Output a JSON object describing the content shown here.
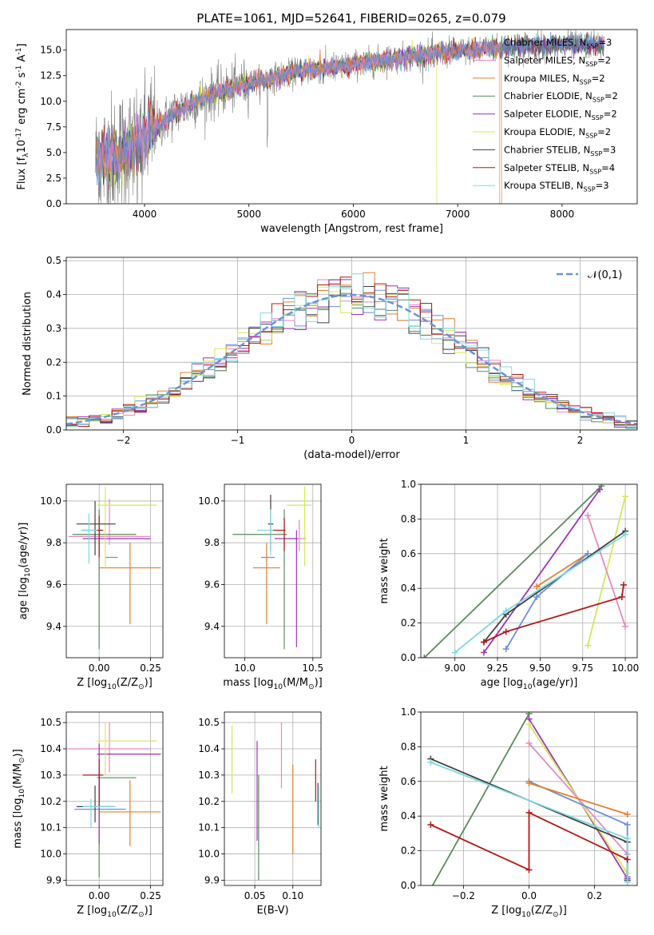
{
  "figure_title": "PLATE=1061, MJD=52641, FIBERID=0265, z=0.079",
  "colors": {
    "data": "#808080",
    "chabrier_miles": "#6b8fdd",
    "salpeter_miles": "#e58ac2",
    "kroupa_miles": "#e6802b",
    "chabrier_elodie": "#5c8a5e",
    "salpeter_elodie": "#9b35b5",
    "kroupa_elodie": "#d4e85a",
    "chabrier_stelib": "#404040",
    "salpeter_stelib": "#b01a1a",
    "kroupa_stelib": "#7fd9e0",
    "normal": "#6a94d4"
  },
  "legend_models": [
    "Chabrier MILES, N$_{SSP}$=3",
    "Salpeter MILES, N$_{SSP}$=2",
    "Kroupa MILES, N$_{SSP}$=2",
    "Chabrier ELODIE, N$_{SSP}$=2",
    "Salpeter ELODIE, N$_{SSP}$=2",
    "Kroupa ELODIE, N$_{SSP}$=2",
    "Chabrier STELIB, N$_{SSP}$=3",
    "Salpeter STELIB, N$_{SSP}$=4",
    "Kroupa STELIB, N$_{SSP}$=3"
  ],
  "chart_data": [
    {
      "id": "spectrum",
      "type": "line",
      "xlabel": "wavelength [Angstrom, rest frame]",
      "ylabel": "Flux [f$_\\lambda$10$^{-17}$ erg cm$^{-2}$ s$^{-1}$ A$^{-1}$]",
      "xlim": [
        3250,
        8720
      ],
      "ylim": [
        0,
        17
      ],
      "xticks": [
        4000,
        5000,
        6000,
        7000,
        8000
      ],
      "yticks": [
        0.0,
        2.5,
        5.0,
        7.5,
        10.0,
        12.5,
        15.0
      ],
      "grid": false,
      "legend": "upper right",
      "x_range": [
        3530,
        8400
      ],
      "continuum": [
        [
          3530,
          4.0
        ],
        [
          3800,
          5.0
        ],
        [
          4000,
          6.5
        ],
        [
          4300,
          9.0
        ],
        [
          4600,
          10.5
        ],
        [
          5000,
          11.8
        ],
        [
          5500,
          12.9
        ],
        [
          6000,
          13.6
        ],
        [
          6500,
          14.3
        ],
        [
          7000,
          14.9
        ],
        [
          7500,
          15.3
        ],
        [
          8000,
          15.5
        ],
        [
          8400,
          15.5
        ]
      ]
    },
    {
      "id": "residuals",
      "type": "histogram",
      "xlabel": "(data-model)/error",
      "ylabel": "Normed distribution",
      "xlim": [
        -2.5,
        2.5
      ],
      "ylim": [
        0,
        0.51
      ],
      "xticks": [
        -2,
        -1,
        0,
        1,
        2
      ],
      "yticks": [
        0.0,
        0.1,
        0.2,
        0.3,
        0.4,
        0.5
      ],
      "grid": true,
      "legend": "upper right",
      "reference": {
        "name": "$\\mathcal{N}(0,1)$",
        "type": "gaussian",
        "mean": 0,
        "sigma": 1
      },
      "bin_width": 0.1
    },
    {
      "id": "age_vs_Z",
      "type": "scatter",
      "xlabel": "Z [log$_{10}$(Z/Z$_\\odot$)]",
      "ylabel": "age  [log$_{10}$(age/yr)]",
      "xlim": [
        -0.16,
        0.31
      ],
      "ylim": [
        9.25,
        10.08
      ],
      "xticks": [
        0.0,
        0.25
      ],
      "yticks": [
        9.4,
        9.6,
        9.8,
        10.0
      ],
      "grid": true,
      "points": [
        {
          "model": "chabrier_miles",
          "x": 0.06,
          "xerr": [
            0.03,
            0.03
          ],
          "y": 9.73
        },
        {
          "model": "salpeter_miles",
          "x": 0.05,
          "xerr": [
            0.2,
            0.2
          ],
          "y": 9.83,
          "yerr": [
            0.04,
            0.18
          ]
        },
        {
          "model": "kroupa_miles",
          "x": 0.15,
          "xerr": [
            0.15,
            0.15
          ],
          "y": 9.68,
          "yerr": [
            0.27,
            0.12
          ]
        },
        {
          "model": "chabrier_elodie",
          "x": 0.0,
          "xerr": [
            0.13,
            0.18
          ],
          "y": 9.84,
          "yerr": [
            0.55,
            0.12
          ]
        },
        {
          "model": "salpeter_elodie",
          "x": 0.05,
          "xerr": [
            0.13,
            0.2
          ],
          "y": 9.82
        },
        {
          "model": "kroupa_elodie",
          "x": 0.03,
          "xerr": [
            0.04,
            0.25
          ],
          "y": 9.98,
          "yerr": [
            0.3,
            0.09
          ]
        },
        {
          "model": "chabrier_stelib",
          "x": -0.02,
          "xerr": [
            0.09,
            0.1
          ],
          "y": 9.89,
          "yerr": [
            0.15,
            0.11
          ]
        },
        {
          "model": "salpeter_stelib",
          "x": 0.0,
          "xerr": [
            0.08,
            0.02
          ],
          "y": 9.86,
          "yerr": [
            0.13,
            0.07
          ]
        },
        {
          "model": "kroupa_stelib",
          "x": -0.05,
          "xerr": [
            0.04,
            0.04
          ],
          "y": 9.86,
          "yerr": [
            0.16,
            0.08
          ]
        }
      ]
    },
    {
      "id": "age_vs_mass",
      "type": "scatter",
      "xlabel": "mass [log$_{10}$(M/M$_\\odot$)]",
      "ylabel": "",
      "xlim": [
        9.85,
        10.56
      ],
      "ylim": [
        9.25,
        10.08
      ],
      "xticks": [
        10.0,
        10.5
      ],
      "yticks": [
        9.4,
        9.6,
        9.8,
        10.0
      ],
      "grid": true,
      "points": [
        {
          "model": "chabrier_miles",
          "x": 10.17,
          "xerr": [
            0.05,
            0.05
          ],
          "y": 9.73
        },
        {
          "model": "salpeter_miles",
          "x": 10.4,
          "xerr": [
            0.08,
            0.05
          ],
          "y": 9.82,
          "yerr": [
            0.06,
            0.09
          ]
        },
        {
          "model": "kroupa_miles",
          "x": 10.16,
          "xerr": [
            0.1,
            0.1
          ],
          "y": 9.68,
          "yerr": [
            0.27,
            0.12
          ]
        },
        {
          "model": "chabrier_elodie",
          "x": 10.29,
          "xerr": [
            0.38,
            0.02
          ],
          "y": 9.84,
          "yerr": [
            0.55,
            0.12
          ]
        },
        {
          "model": "salpeter_elodie",
          "x": 10.38,
          "xerr": [
            0.16,
            0.01
          ],
          "y": 9.82,
          "yerr": [
            0.52,
            0.04
          ]
        },
        {
          "model": "kroupa_elodie",
          "x": 10.44,
          "xerr": [
            0.13,
            0.05
          ],
          "y": 9.98,
          "yerr": [
            0.29,
            0.09
          ]
        },
        {
          "model": "chabrier_stelib",
          "x": 10.19,
          "xerr": [
            0.02,
            0.02
          ],
          "y": 9.89,
          "yerr": [
            0.13,
            0.14
          ]
        },
        {
          "model": "salpeter_stelib",
          "x": 10.29,
          "xerr": [
            0.1,
            0.01
          ],
          "y": 9.86,
          "yerr": [
            0.1,
            0.06
          ]
        },
        {
          "model": "kroupa_stelib",
          "x": 10.19,
          "xerr": [
            0.1,
            0.02
          ],
          "y": 9.86,
          "yerr": [
            0.12,
            0.1
          ]
        }
      ]
    },
    {
      "id": "weight_vs_age",
      "type": "line",
      "xlabel": "age  [log$_{10}$(age/yr)]",
      "ylabel": "mass weight",
      "xlim": [
        8.8,
        10.07
      ],
      "ylim": [
        0,
        1.0
      ],
      "xticks": [
        9.0,
        9.25,
        9.5,
        9.75,
        10.0
      ],
      "yticks": [
        0.0,
        0.2,
        0.4,
        0.6,
        0.8,
        1.0
      ],
      "grid": true,
      "series": [
        {
          "model": "chabrier_elodie",
          "x": [
            8.82,
            9.86
          ],
          "y": [
            0.0,
            0.99
          ]
        },
        {
          "model": "salpeter_elodie",
          "x": [
            9.17,
            9.85
          ],
          "y": [
            0.03,
            0.97
          ]
        },
        {
          "model": "kroupa_elodie",
          "x": [
            9.78,
            10.0
          ],
          "y": [
            0.07,
            0.93
          ]
        },
        {
          "model": "salpeter_miles",
          "x": [
            9.78,
            10.0
          ],
          "y": [
            0.82,
            0.18
          ]
        },
        {
          "model": "kroupa_miles",
          "x": [
            9.48,
            9.78
          ],
          "y": [
            0.41,
            0.6
          ]
        },
        {
          "model": "chabrier_miles",
          "x": [
            9.3,
            9.48,
            9.78
          ],
          "y": [
            0.05,
            0.35,
            0.6
          ]
        },
        {
          "model": "chabrier_stelib",
          "x": [
            9.17,
            9.3,
            10.0
          ],
          "y": [
            0.09,
            0.25,
            0.73
          ]
        },
        {
          "model": "salpeter_stelib",
          "x": [
            9.17,
            9.3,
            9.98,
            9.99
          ],
          "y": [
            0.09,
            0.15,
            0.35,
            0.42
          ]
        },
        {
          "model": "kroupa_stelib",
          "x": [
            9.0,
            9.3,
            10.0
          ],
          "y": [
            0.03,
            0.27,
            0.71
          ]
        }
      ]
    },
    {
      "id": "mass_vs_Z",
      "type": "scatter",
      "xlabel": "Z [log$_{10}$(Z/Z$_\\odot$)]",
      "ylabel": "mass [log$_{10}$(M/M$_\\odot$)]",
      "xlim": [
        -0.16,
        0.31
      ],
      "ylim": [
        9.88,
        10.54
      ],
      "xticks": [
        0.0,
        0.25
      ],
      "yticks": [
        9.9,
        10.0,
        10.1,
        10.2,
        10.3,
        10.4,
        10.5
      ],
      "grid": true,
      "points": [
        {
          "model": "chabrier_miles",
          "x": 0.06,
          "xerr": [
            0.18,
            0.07
          ],
          "y": 10.17
        },
        {
          "model": "salpeter_miles",
          "x": 0.05,
          "xerr": [
            0.2,
            0.2
          ],
          "y": 10.4,
          "yerr": [
            0.09,
            0.1
          ]
        },
        {
          "model": "kroupa_miles",
          "x": 0.15,
          "xerr": [
            0.15,
            0.15
          ],
          "y": 10.16,
          "yerr": [
            0.13,
            0.12
          ]
        },
        {
          "model": "chabrier_elodie",
          "x": 0.0,
          "xerr": [
            0.01,
            0.18
          ],
          "y": 10.29,
          "yerr": [
            0.38,
            0.02
          ]
        },
        {
          "model": "salpeter_elodie",
          "x": 0.0,
          "xerr": [
            0.01,
            0.3
          ],
          "y": 10.38,
          "yerr": [
            0.34,
            0.04
          ]
        },
        {
          "model": "kroupa_elodie",
          "x": 0.03,
          "xerr": [
            0.04,
            0.25
          ],
          "y": 10.43,
          "yerr": [
            0.13,
            0.07
          ]
        },
        {
          "model": "chabrier_stelib",
          "x": -0.02,
          "xerr": [
            0.09,
            0.09
          ],
          "y": 10.18,
          "yerr": [
            0.06,
            0.08
          ]
        },
        {
          "model": "salpeter_stelib",
          "x": 0.0,
          "xerr": [
            0.08,
            0.02
          ],
          "y": 10.3,
          "yerr": [
            0.12,
            0.06
          ]
        },
        {
          "model": "kroupa_stelib",
          "x": -0.04,
          "xerr": [
            0.04,
            0.12
          ],
          "y": 10.18,
          "yerr": [
            0.08,
            0.03
          ]
        }
      ]
    },
    {
      "id": "mass_vs_ebv",
      "type": "scatter",
      "xlabel": "E(B-V)",
      "ylabel": "",
      "xlim": [
        0.01,
        0.137
      ],
      "ylim": [
        9.88,
        10.54
      ],
      "xticks": [
        0.05,
        0.1
      ],
      "yticks": [
        9.9,
        10.0,
        10.1,
        10.2,
        10.3,
        10.4,
        10.5
      ],
      "grid": true,
      "points": [
        {
          "model": "kroupa_elodie",
          "x": 0.02,
          "y": 10.36,
          "yerr": [
            0.13,
            0.13
          ]
        },
        {
          "model": "chabrier_elodie",
          "x": 0.055,
          "y": 10.1,
          "yerr": [
            0.2,
            0.2
          ]
        },
        {
          "model": "salpeter_elodie",
          "x": 0.053,
          "y": 10.24,
          "yerr": [
            0.19,
            0.19
          ]
        },
        {
          "model": "salpeter_miles",
          "x": 0.085,
          "y": 10.38,
          "yerr": [
            0.13,
            0.12
          ]
        },
        {
          "model": "kroupa_miles",
          "x": 0.1,
          "y": 10.17,
          "yerr": [
            0.17,
            0.17
          ]
        },
        {
          "model": "salpeter_stelib",
          "x": 0.13,
          "y": 10.27,
          "yerr": [
            0.07,
            0.09
          ]
        },
        {
          "model": "chabrier_stelib",
          "x": 0.133,
          "y": 10.18,
          "yerr": [
            0.07,
            0.09
          ]
        },
        {
          "model": "kroupa_stelib",
          "x": 0.134,
          "y": 10.2,
          "yerr": [
            0.1,
            0.06
          ]
        }
      ]
    },
    {
      "id": "weight_vs_Z",
      "type": "line",
      "xlabel": "Z [log$_{10}$(Z/Z$_\\odot$)]",
      "ylabel": "mass weight",
      "xlim": [
        -0.33,
        0.33
      ],
      "ylim": [
        0,
        1.0
      ],
      "xticks": [
        -0.2,
        0.0,
        0.2
      ],
      "yticks": [
        0.0,
        0.2,
        0.4,
        0.6,
        0.8,
        1.0
      ],
      "grid": true,
      "series": [
        {
          "model": "chabrier_elodie",
          "x": [
            -0.3,
            0.0
          ],
          "y": [
            -0.02,
            0.99
          ]
        },
        {
          "model": "salpeter_elodie",
          "x": [
            0.0,
            0.3
          ],
          "y": [
            0.96,
            0.04
          ]
        },
        {
          "model": "kroupa_elodie",
          "x": [
            0.0,
            0.3
          ],
          "y": [
            0.93,
            0.07
          ]
        },
        {
          "model": "salpeter_miles",
          "x": [
            0.0,
            0.3
          ],
          "y": [
            0.82,
            0.18
          ]
        },
        {
          "model": "chabrier_miles",
          "x": [
            0.0,
            0.3,
            0.3
          ],
          "y": [
            0.6,
            0.35,
            0.05
          ]
        },
        {
          "model": "kroupa_miles",
          "x": [
            0.0,
            0.3
          ],
          "y": [
            0.59,
            0.41
          ]
        },
        {
          "model": "chabrier_stelib",
          "x": [
            -0.3,
            0.3,
            0.3
          ],
          "y": [
            0.73,
            0.25,
            0.03
          ]
        },
        {
          "model": "kroupa_stelib",
          "x": [
            -0.3,
            0.3,
            0.3
          ],
          "y": [
            0.71,
            0.27,
            0.02
          ]
        },
        {
          "model": "salpeter_stelib",
          "x": [
            -0.3,
            0.0,
            0.0,
            0.3
          ],
          "y": [
            0.35,
            0.09,
            0.42,
            0.15
          ]
        }
      ]
    }
  ]
}
